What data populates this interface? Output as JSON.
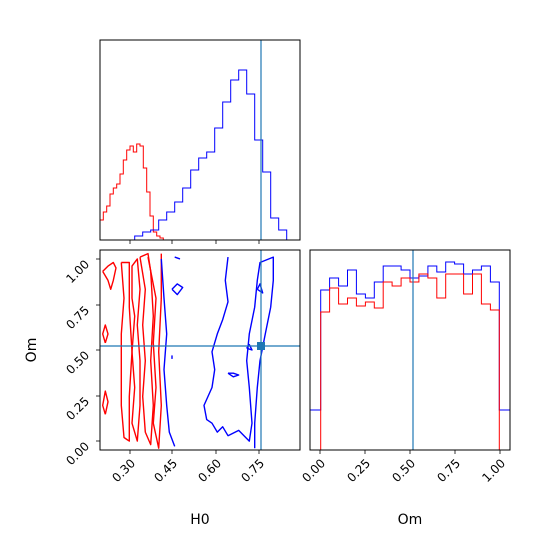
{
  "chart_data": {
    "type": "corner",
    "parameters": [
      "H0",
      "Om"
    ],
    "truth": {
      "H0": 0.745,
      "Om": 0.52
    },
    "colors": {
      "red": "#ff0000",
      "blue": "#0000ff",
      "truth": "#1f77b4"
    },
    "panels": [
      {
        "id": "h0-marginal",
        "type": "step-histogram",
        "xlim": [
          0.18,
          0.93
        ],
        "ylim": [
          0,
          1.0
        ],
        "series": [
          {
            "color": "red",
            "bins": [
              0.18,
              0.1925,
              0.205,
              0.2175,
              0.23,
              0.2425,
              0.255,
              0.2675,
              0.28,
              0.2925,
              0.305,
              0.3175,
              0.33,
              0.3425,
              0.355,
              0.3675,
              0.38,
              0.3925,
              0.405,
              0.4175,
              0.43
            ],
            "values": [
              0.1,
              0.14,
              0.17,
              0.23,
              0.26,
              0.28,
              0.33,
              0.4,
              0.45,
              0.47,
              0.44,
              0.48,
              0.47,
              0.36,
              0.24,
              0.12,
              0.04,
              0.02,
              0.01,
              0.0
            ]
          },
          {
            "color": "blue",
            "bins": [
              0.31,
              0.34,
              0.37,
              0.4,
              0.43,
              0.46,
              0.49,
              0.52,
              0.55,
              0.58,
              0.61,
              0.64,
              0.67,
              0.7,
              0.73,
              0.76,
              0.79,
              0.82,
              0.85,
              0.88,
              0.91
            ],
            "values": [
              0.02,
              0.04,
              0.05,
              0.1,
              0.14,
              0.19,
              0.26,
              0.35,
              0.41,
              0.44,
              0.56,
              0.69,
              0.8,
              0.85,
              0.73,
              0.5,
              0.34,
              0.11,
              0.05,
              0.0
            ]
          }
        ]
      },
      {
        "id": "om-marginal",
        "type": "step-histogram",
        "xlim": [
          -0.06,
          1.06
        ],
        "xticks": [
          0.0,
          0.25,
          0.5,
          0.75,
          1.0
        ],
        "xtick_labels": [
          "0.00",
          "0.25",
          "0.50",
          "0.75",
          "1.00"
        ],
        "xlabel": "Om",
        "ylim": [
          0,
          1.0
        ],
        "series": [
          {
            "color": "blue",
            "bins": [
              -0.06,
              0.0,
              0.05,
              0.1,
              0.15,
              0.2,
              0.25,
              0.3,
              0.35,
              0.4,
              0.45,
              0.5,
              0.55,
              0.6,
              0.65,
              0.7,
              0.75,
              0.8,
              0.85,
              0.9,
              0.95,
              1.0,
              1.06
            ],
            "values": [
              0.2,
              0.8,
              0.86,
              0.82,
              0.9,
              0.78,
              0.76,
              0.84,
              0.92,
              0.92,
              0.9,
              0.86,
              0.87,
              0.92,
              0.89,
              0.94,
              0.93,
              0.88,
              0.9,
              0.92,
              0.84,
              0.2
            ]
          },
          {
            "color": "red",
            "bins": [
              0.0,
              0.05,
              0.1,
              0.15,
              0.2,
              0.25,
              0.3,
              0.35,
              0.4,
              0.45,
              0.5,
              0.55,
              0.6,
              0.65,
              0.7,
              0.75,
              0.8,
              0.85,
              0.9,
              0.95,
              1.0
            ],
            "values": [
              0.69,
              0.81,
              0.73,
              0.76,
              0.72,
              0.74,
              0.71,
              0.84,
              0.82,
              0.86,
              0.84,
              0.88,
              0.86,
              0.76,
              0.88,
              0.88,
              0.78,
              0.88,
              0.73,
              0.7
            ]
          }
        ]
      },
      {
        "id": "joint",
        "type": "contour",
        "xlim": [
          0.18,
          0.93
        ],
        "ylim": [
          -0.05,
          1.07
        ],
        "xticks": [
          0.3,
          0.45,
          0.6,
          0.75
        ],
        "xtick_labels": [
          "0.30",
          "0.45",
          "0.60",
          "0.75"
        ],
        "yticks": [
          0.0,
          0.25,
          0.5,
          0.75,
          1.0
        ],
        "ytick_labels": [
          "0.00",
          "0.25",
          "0.50",
          "0.75",
          "1.00"
        ],
        "xlabel": "H0",
        "ylabel": "Om",
        "series": [
          {
            "color": "red",
            "contours": [
              [
                [
                  0.19,
                  0.95
                ],
                [
                  0.21,
                  0.98
                ],
                [
                  0.23,
                  1.0
                ],
                [
                  0.24,
                  0.97
                ],
                [
                  0.23,
                  0.9
                ],
                [
                  0.22,
                  0.85
                ],
                [
                  0.21,
                  0.9
                ],
                [
                  0.19,
                  0.95
                ]
              ],
              [
                [
                  0.26,
                  1.0
                ],
                [
                  0.27,
                  0.8
                ],
                [
                  0.26,
                  0.6
                ],
                [
                  0.26,
                  0.4
                ],
                [
                  0.26,
                  0.2
                ],
                [
                  0.27,
                  0.02
                ],
                [
                  0.29,
                  0.0
                ],
                [
                  0.29,
                  0.25
                ],
                [
                  0.3,
                  0.5
                ],
                [
                  0.29,
                  0.75
                ],
                [
                  0.29,
                  1.0
                ],
                [
                  0.26,
                  1.0
                ]
              ],
              [
                [
                  0.3,
                  0.8
                ],
                [
                  0.31,
                  0.7
                ],
                [
                  0.3,
                  0.5
                ],
                [
                  0.31,
                  0.3
                ],
                [
                  0.3,
                  0.1
                ],
                [
                  0.32,
                  0.0
                ],
                [
                  0.33,
                  0.2
                ],
                [
                  0.33,
                  0.45
                ],
                [
                  0.32,
                  0.65
                ],
                [
                  0.33,
                  0.85
                ],
                [
                  0.32,
                  1.02
                ],
                [
                  0.3,
                  0.98
                ],
                [
                  0.3,
                  0.8
                ]
              ],
              [
                [
                  0.33,
                  1.03
                ],
                [
                  0.35,
                  0.85
                ],
                [
                  0.34,
                  0.65
                ],
                [
                  0.35,
                  0.45
                ],
                [
                  0.34,
                  0.25
                ],
                [
                  0.35,
                  0.05
                ],
                [
                  0.37,
                  -0.02
                ],
                [
                  0.38,
                  0.2
                ],
                [
                  0.37,
                  0.45
                ],
                [
                  0.38,
                  0.7
                ],
                [
                  0.37,
                  0.95
                ],
                [
                  0.36,
                  1.05
                ],
                [
                  0.33,
                  1.03
                ]
              ],
              [
                [
                  0.36,
                  1.03
                ],
                [
                  0.39,
                  0.8
                ],
                [
                  0.38,
                  0.55
                ],
                [
                  0.39,
                  0.3
                ],
                [
                  0.38,
                  0.1
                ],
                [
                  0.4,
                  -0.04
                ],
                [
                  0.41,
                  0.2
                ],
                [
                  0.4,
                  0.5
                ],
                [
                  0.41,
                  0.8
                ],
                [
                  0.41,
                  1.05
                ]
              ],
              [
                [
                  0.2,
                  0.55
                ],
                [
                  0.21,
                  0.6
                ],
                [
                  0.2,
                  0.65
                ],
                [
                  0.19,
                  0.6
                ],
                [
                  0.2,
                  0.55
                ]
              ],
              [
                [
                  0.2,
                  0.15
                ],
                [
                  0.21,
                  0.22
                ],
                [
                  0.2,
                  0.28
                ],
                [
                  0.19,
                  0.2
                ],
                [
                  0.2,
                  0.15
                ]
              ]
            ]
          },
          {
            "color": "blue",
            "contours": [
              [
                [
                  0.41,
                  1.02
                ],
                [
                  0.42,
                  0.8
                ],
                [
                  0.43,
                  0.6
                ],
                [
                  0.42,
                  0.4
                ],
                [
                  0.43,
                  0.2
                ],
                [
                  0.44,
                  0.05
                ],
                [
                  0.46,
                  -0.03
                ]
              ],
              [
                [
                  0.46,
                  1.03
                ],
                [
                  0.48,
                  1.02
                ]
              ],
              [
                [
                  0.45,
                  0.85
                ],
                [
                  0.47,
                  0.88
                ],
                [
                  0.49,
                  0.86
                ],
                [
                  0.47,
                  0.82
                ],
                [
                  0.45,
                  0.85
                ]
              ],
              [
                [
                  0.66,
                  1.03
                ],
                [
                  0.65,
                  0.9
                ],
                [
                  0.66,
                  0.78
                ],
                [
                  0.64,
                  0.68
                ],
                [
                  0.62,
                  0.6
                ],
                [
                  0.6,
                  0.5
                ],
                [
                  0.61,
                  0.4
                ],
                [
                  0.6,
                  0.3
                ],
                [
                  0.57,
                  0.2
                ],
                [
                  0.58,
                  0.12
                ],
                [
                  0.6,
                  0.1
                ],
                [
                  0.62,
                  0.05
                ],
                [
                  0.64,
                  0.08
                ],
                [
                  0.66,
                  0.03
                ],
                [
                  0.7,
                  0.06
                ],
                [
                  0.72,
                  0.03
                ],
                [
                  0.74,
                  0.0
                ],
                [
                  0.75,
                  0.1
                ],
                [
                  0.74,
                  0.3
                ],
                [
                  0.73,
                  0.45
                ],
                [
                  0.74,
                  0.6
                ],
                [
                  0.76,
                  0.75
                ],
                [
                  0.77,
                  0.9
                ],
                [
                  0.78,
                  1.0
                ],
                [
                  0.83,
                  1.03
                ],
                [
                  0.83,
                  0.9
                ],
                [
                  0.82,
                  0.75
                ],
                [
                  0.8,
                  0.6
                ],
                [
                  0.78,
                  0.45
                ],
                [
                  0.77,
                  0.3
                ],
                [
                  0.76,
                  0.1
                ],
                [
                  0.76,
                  -0.04
                ]
              ],
              [
                [
                  0.77,
                  0.85
                ],
                [
                  0.78,
                  0.88
                ],
                [
                  0.79,
                  0.83
                ],
                [
                  0.77,
                  0.85
                ]
              ],
              [
                [
                  0.66,
                  0.38
                ],
                [
                  0.68,
                  0.38
                ],
                [
                  0.7,
                  0.37
                ],
                [
                  0.68,
                  0.36
                ],
                [
                  0.66,
                  0.38
                ]
              ],
              [
                [
                  0.45,
                  0.46
                ],
                [
                  0.45,
                  0.48
                ]
              ],
              [
                [
                  0.73,
                  0.52
                ],
                [
                  0.74,
                  0.54
                ],
                [
                  0.75,
                  0.51
                ],
                [
                  0.73,
                  0.52
                ]
              ]
            ]
          }
        ]
      }
    ]
  }
}
